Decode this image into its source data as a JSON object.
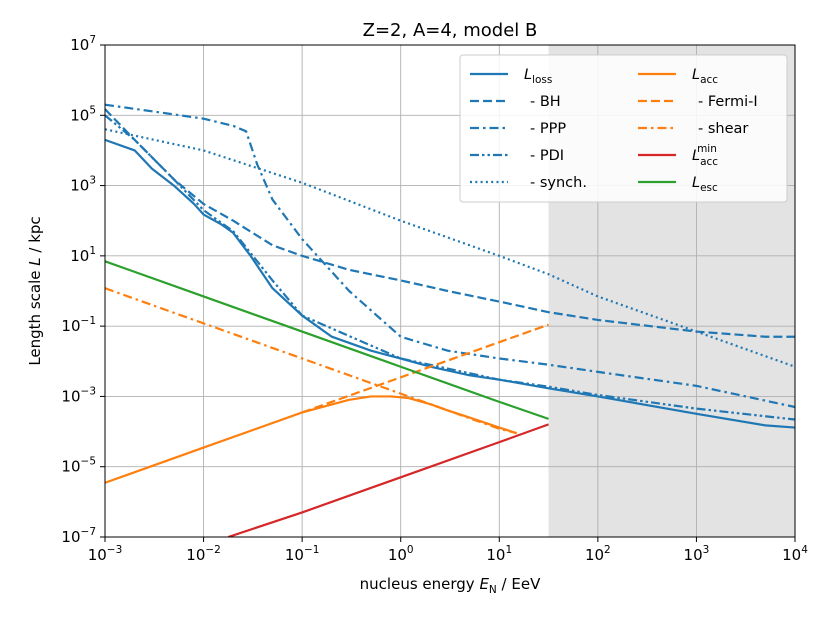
{
  "chart_data": {
    "type": "line",
    "title": "Z=2, A=4, model B",
    "xlabel": {
      "prefix": "nucleus energy ",
      "var": "E",
      "sub": "N",
      "suffix": " / EeV"
    },
    "ylabel": {
      "prefix": "Length scale ",
      "var": "L",
      "suffix": " / kpc"
    },
    "xscale": "log",
    "yscale": "log",
    "xlim": [
      0.001,
      10000
    ],
    "ylim": [
      1e-07,
      10000000.0
    ],
    "grid": true,
    "shaded_region": {
      "x_from": 31.6,
      "x_to": 10000,
      "color": "#e3e3e3"
    },
    "xticks": [
      {
        "value": 0.001,
        "base": "10",
        "exp": "−3"
      },
      {
        "value": 0.01,
        "base": "10",
        "exp": "−2"
      },
      {
        "value": 0.1,
        "base": "10",
        "exp": "−1"
      },
      {
        "value": 1,
        "base": "10",
        "exp": "0"
      },
      {
        "value": 10,
        "base": "10",
        "exp": "1"
      },
      {
        "value": 100,
        "base": "10",
        "exp": "2"
      },
      {
        "value": 1000,
        "base": "10",
        "exp": "3"
      },
      {
        "value": 10000,
        "base": "10",
        "exp": "4"
      }
    ],
    "yticks": [
      {
        "value": 1e-07,
        "base": "10",
        "exp": "−7"
      },
      {
        "value": 1e-05,
        "base": "10",
        "exp": "−5"
      },
      {
        "value": 0.001,
        "base": "10",
        "exp": "−3"
      },
      {
        "value": 0.1,
        "base": "10",
        "exp": "−1"
      },
      {
        "value": 10,
        "base": "10",
        "exp": "1"
      },
      {
        "value": 1000,
        "base": "10",
        "exp": "3"
      },
      {
        "value": 100000,
        "base": "10",
        "exp": "5"
      },
      {
        "value": 10000000,
        "base": "10",
        "exp": "7"
      }
    ],
    "legend_position": "top-right",
    "series": [
      {
        "id": "l-loss",
        "legend": {
          "main": "L",
          "sub": "loss"
        },
        "color": "#1f77b4",
        "dash": "solid",
        "x": [
          0.001,
          0.002,
          0.003,
          0.005,
          0.008,
          0.01,
          0.015,
          0.02,
          0.03,
          0.05,
          0.1,
          0.2,
          0.5,
          1,
          2,
          5,
          10,
          31.6,
          100,
          1000,
          5000,
          10000
        ],
        "y": [
          20000,
          10000,
          3000,
          1000,
          300,
          150,
          80,
          45,
          10,
          1.2,
          0.2,
          0.05,
          0.02,
          0.012,
          0.007,
          0.004,
          0.003,
          0.0017,
          0.001,
          0.00032,
          0.00015,
          0.00013
        ]
      },
      {
        "id": "bh",
        "legend": {
          "main": "- BH"
        },
        "color": "#1f77b4",
        "dash": "dash",
        "x": [
          0.001,
          0.002,
          0.005,
          0.01,
          0.02,
          0.05,
          0.1,
          0.3,
          1,
          3,
          10,
          31.6,
          100,
          1000,
          5000,
          10000
        ],
        "y": [
          150000,
          20000,
          1500,
          300,
          100,
          20,
          10,
          4,
          2,
          1,
          0.5,
          0.25,
          0.15,
          0.07,
          0.05,
          0.05
        ]
      },
      {
        "id": "ppp",
        "legend": {
          "main": "- PPP"
        },
        "color": "#1f77b4",
        "dash": "dashdot",
        "x": [
          0.001,
          0.003,
          0.01,
          0.02,
          0.027,
          0.035,
          0.05,
          0.1,
          0.3,
          1,
          3,
          10,
          31.6,
          100,
          1000,
          10000
        ],
        "y": [
          200000,
          130000,
          80000,
          50000,
          35000,
          4000,
          400,
          30,
          1,
          0.05,
          0.02,
          0.012,
          0.008,
          0.005,
          0.002,
          0.0005
        ]
      },
      {
        "id": "pdi",
        "legend": {
          "main": "- PDI"
        },
        "color": "#1f77b4",
        "dash": "dashdotdot",
        "x": [
          0.001,
          0.002,
          0.005,
          0.01,
          0.02,
          0.05,
          0.1,
          1,
          10,
          31.6,
          100,
          1000,
          10000
        ],
        "y": [
          100000,
          20000,
          1500,
          200,
          50,
          2,
          0.2,
          0.012,
          0.003,
          0.0019,
          0.0011,
          0.00045,
          0.00022
        ]
      },
      {
        "id": "synch",
        "legend": {
          "main": "- synch."
        },
        "color": "#1f77b4",
        "dash": "dot",
        "x": [
          0.001,
          0.01,
          0.1,
          1,
          10,
          31.6,
          100,
          1000,
          10000
        ],
        "y": [
          40000,
          10000,
          1200,
          100,
          10,
          3,
          0.7,
          0.07,
          0.007
        ]
      },
      {
        "id": "l-acc",
        "legend": {
          "main": "L",
          "sub": "acc"
        },
        "color": "#ff7f0e",
        "dash": "solid",
        "x": [
          0.001,
          0.01,
          0.1,
          0.3,
          0.5,
          0.8,
          1.2,
          2,
          3,
          5,
          10,
          15
        ],
        "y": [
          3.5e-06,
          3.5e-05,
          0.00035,
          0.0008,
          0.001,
          0.001,
          0.0009,
          0.0006,
          0.0004,
          0.00025,
          0.00013,
          9e-05
        ]
      },
      {
        "id": "fermi",
        "legend": {
          "main": "- Fermi-I"
        },
        "color": "#ff7f0e",
        "dash": "dash",
        "x": [
          0.1,
          1,
          10,
          31.6
        ],
        "y": [
          0.00035,
          0.0035,
          0.035,
          0.11
        ]
      },
      {
        "id": "shear",
        "legend": {
          "main": "- shear"
        },
        "color": "#ff7f0e",
        "dash": "dashdot",
        "x": [
          0.001,
          0.01,
          0.1,
          1,
          10,
          15
        ],
        "y": [
          1.2,
          0.12,
          0.012,
          0.0012,
          0.00012,
          9e-05
        ]
      },
      {
        "id": "l-acc-min",
        "legend": {
          "main": "L",
          "sub": "acc",
          "sup": "min"
        },
        "color": "#d62728",
        "dash": "solid",
        "x": [
          0.0178,
          0.1,
          1,
          10,
          31.6
        ],
        "y": [
          1e-07,
          5e-07,
          5e-06,
          5e-05,
          0.00016
        ]
      },
      {
        "id": "l-esc",
        "legend": {
          "main": "L",
          "sub": "esc"
        },
        "color": "#2ca02c",
        "dash": "solid",
        "x": [
          0.001,
          0.01,
          0.1,
          1,
          10,
          31.6
        ],
        "y": [
          7,
          0.7,
          0.07,
          0.007,
          0.0007,
          0.00023
        ]
      }
    ]
  }
}
